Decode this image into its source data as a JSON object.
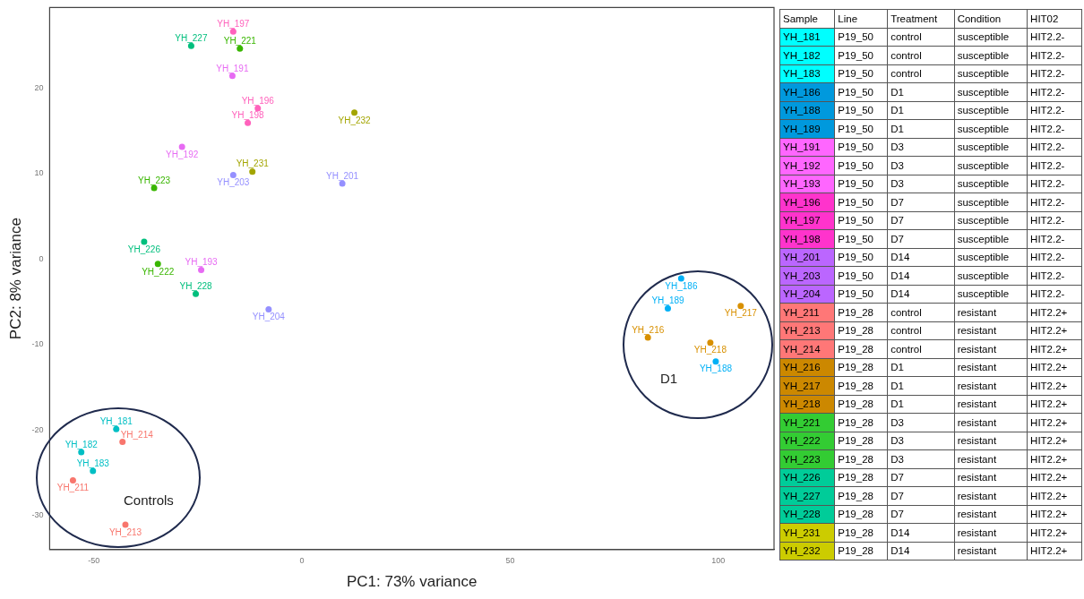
{
  "chart_data": [
    {
      "type": "scatter",
      "xlabel": "PC1: 73% variance",
      "ylabel": "PC2: 8% variance",
      "xlim": [
        -60.6,
        113.4
      ],
      "ylim": [
        -34,
        29.4
      ],
      "xticks": [
        -50,
        0,
        50,
        100
      ],
      "yticks": [
        -30,
        -20,
        -10,
        0,
        10,
        20
      ],
      "grid": false,
      "legend": false,
      "marker": "circle",
      "annotations": [
        "Controls",
        "D1"
      ],
      "series": [
        {
          "name": "YH_197",
          "color": "#ff62bc",
          "x": [
            -16.5
          ],
          "values": [
            26.6
          ]
        },
        {
          "name": "YH_227",
          "color": "#00bf7d",
          "x": [
            -26.6
          ],
          "values": [
            24.9
          ]
        },
        {
          "name": "YH_221",
          "color": "#39b600",
          "x": [
            -14.9
          ],
          "values": [
            24.6
          ]
        },
        {
          "name": "YH_191",
          "color": "#e76bf3",
          "x": [
            -16.7
          ],
          "values": [
            21.4
          ]
        },
        {
          "name": "YH_196",
          "color": "#ff62bc",
          "x": [
            -10.6
          ],
          "values": [
            17.6
          ]
        },
        {
          "name": "YH_198",
          "color": "#ff62bc",
          "x": [
            -13
          ],
          "values": [
            15.9
          ]
        },
        {
          "name": "YH_232",
          "color": "#a3a500",
          "x": [
            12.6
          ],
          "values": [
            17.1
          ]
        },
        {
          "name": "YH_192",
          "color": "#e76bf3",
          "x": [
            -28.8
          ],
          "values": [
            13.1
          ]
        },
        {
          "name": "YH_231",
          "color": "#a3a500",
          "x": [
            -11.9
          ],
          "values": [
            10.2
          ]
        },
        {
          "name": "YH_203",
          "color": "#9590ff",
          "x": [
            -16.5
          ],
          "values": [
            9.8
          ]
        },
        {
          "name": "YH_223",
          "color": "#39b600",
          "x": [
            -35.5
          ],
          "values": [
            8.3
          ]
        },
        {
          "name": "YH_201",
          "color": "#9590ff",
          "x": [
            9.7
          ],
          "values": [
            8.8
          ]
        },
        {
          "name": "YH_226",
          "color": "#00bf7d",
          "x": [
            -37.9
          ],
          "values": [
            2
          ]
        },
        {
          "name": "YH_222",
          "color": "#39b600",
          "x": [
            -34.6
          ],
          "values": [
            -0.6
          ]
        },
        {
          "name": "YH_193",
          "color": "#e76bf3",
          "x": [
            -24.2
          ],
          "values": [
            -1.3
          ]
        },
        {
          "name": "YH_228",
          "color": "#00bf7d",
          "x": [
            -25.5
          ],
          "values": [
            -4.1
          ]
        },
        {
          "name": "YH_204",
          "color": "#9590ff",
          "x": [
            -8
          ],
          "values": [
            -5.9
          ]
        },
        {
          "name": "YH_186",
          "color": "#00b0f6",
          "x": [
            91.1
          ],
          "values": [
            -2.3
          ]
        },
        {
          "name": "YH_189",
          "color": "#00b0f6",
          "x": [
            87.9
          ],
          "values": [
            -5.8
          ]
        },
        {
          "name": "YH_217",
          "color": "#d89000",
          "x": [
            105.4
          ],
          "values": [
            -5.5
          ]
        },
        {
          "name": "YH_216",
          "color": "#d89000",
          "x": [
            83.1
          ],
          "values": [
            -9.2
          ]
        },
        {
          "name": "YH_218",
          "color": "#d89000",
          "x": [
            98.1
          ],
          "values": [
            -9.8
          ]
        },
        {
          "name": "YH_188",
          "color": "#00b0f6",
          "x": [
            99.4
          ],
          "values": [
            -12
          ]
        },
        {
          "name": "YH_181",
          "color": "#00bfc4",
          "x": [
            -44.6
          ],
          "values": [
            -19.9
          ]
        },
        {
          "name": "YH_214",
          "color": "#f8766d",
          "x": [
            -43.1
          ],
          "values": [
            -21.4
          ]
        },
        {
          "name": "YH_182",
          "color": "#00bfc4",
          "x": [
            -53
          ],
          "values": [
            -22.6
          ]
        },
        {
          "name": "YH_183",
          "color": "#00bfc4",
          "x": [
            -50.2
          ],
          "values": [
            -24.8
          ]
        },
        {
          "name": "YH_211",
          "color": "#f8766d",
          "x": [
            -55
          ],
          "values": [
            -25.9
          ]
        },
        {
          "name": "YH_213",
          "color": "#f8766d",
          "x": [
            -42.4
          ],
          "values": [
            -31.1
          ]
        }
      ]
    },
    {
      "type": "other",
      "categories": [
        "Sample",
        "Line",
        "Treatment",
        "Condition",
        "HIT02"
      ],
      "colors": [
        "#00ffff",
        "#00ffff",
        "#00ffff",
        "#0099dd",
        "#0099dd",
        "#0099dd",
        "#ff66ff",
        "#ff66ff",
        "#ff66ff",
        "#ff33cc",
        "#ff33cc",
        "#ff33cc",
        "#bb66ff",
        "#bb66ff",
        "#bb66ff",
        "#ff7777",
        "#ff7777",
        "#ff7777",
        "#cc8800",
        "#cc8800",
        "#cc8800",
        "#33cc33",
        "#33cc33",
        "#33cc33",
        "#00cc99",
        "#00cc99",
        "#00cc99",
        "#cccc00",
        "#cccc00"
      ],
      "cells": [
        [
          "YH_181",
          "P19_50",
          "control",
          "susceptible",
          "HIT2.2-"
        ],
        [
          "YH_182",
          "P19_50",
          "control",
          "susceptible",
          "HIT2.2-"
        ],
        [
          "YH_183",
          "P19_50",
          "control",
          "susceptible",
          "HIT2.2-"
        ],
        [
          "YH_186",
          "P19_50",
          "D1",
          "susceptible",
          "HIT2.2-"
        ],
        [
          "YH_188",
          "P19_50",
          "D1",
          "susceptible",
          "HIT2.2-"
        ],
        [
          "YH_189",
          "P19_50",
          "D1",
          "susceptible",
          "HIT2.2-"
        ],
        [
          "YH_191",
          "P19_50",
          "D3",
          "susceptible",
          "HIT2.2-"
        ],
        [
          "YH_192",
          "P19_50",
          "D3",
          "susceptible",
          "HIT2.2-"
        ],
        [
          "YH_193",
          "P19_50",
          "D3",
          "susceptible",
          "HIT2.2-"
        ],
        [
          "YH_196",
          "P19_50",
          "D7",
          "susceptible",
          "HIT2.2-"
        ],
        [
          "YH_197",
          "P19_50",
          "D7",
          "susceptible",
          "HIT2.2-"
        ],
        [
          "YH_198",
          "P19_50",
          "D7",
          "susceptible",
          "HIT2.2-"
        ],
        [
          "YH_201",
          "P19_50",
          "D14",
          "susceptible",
          "HIT2.2-"
        ],
        [
          "YH_203",
          "P19_50",
          "D14",
          "susceptible",
          "HIT2.2-"
        ],
        [
          "YH_204",
          "P19_50",
          "D14",
          "susceptible",
          "HIT2.2-"
        ],
        [
          "YH_211",
          "P19_28",
          "control",
          "resistant",
          "HIT2.2+"
        ],
        [
          "YH_213",
          "P19_28",
          "control",
          "resistant",
          "HIT2.2+"
        ],
        [
          "YH_214",
          "P19_28",
          "control",
          "resistant",
          "HIT2.2+"
        ],
        [
          "YH_216",
          "P19_28",
          "D1",
          "resistant",
          "HIT2.2+"
        ],
        [
          "YH_217",
          "P19_28",
          "D1",
          "resistant",
          "HIT2.2+"
        ],
        [
          "YH_218",
          "P19_28",
          "D1",
          "resistant",
          "HIT2.2+"
        ],
        [
          "YH_221",
          "P19_28",
          "D3",
          "resistant",
          "HIT2.2+"
        ],
        [
          "YH_222",
          "P19_28",
          "D3",
          "resistant",
          "HIT2.2+"
        ],
        [
          "YH_223",
          "P19_28",
          "D3",
          "resistant",
          "HIT2.2+"
        ],
        [
          "YH_226",
          "P19_28",
          "D7",
          "resistant",
          "HIT2.2+"
        ],
        [
          "YH_227",
          "P19_28",
          "D7",
          "resistant",
          "HIT2.2+"
        ],
        [
          "YH_228",
          "P19_28",
          "D7",
          "resistant",
          "HIT2.2+"
        ],
        [
          "YH_231",
          "P19_28",
          "D14",
          "resistant",
          "HIT2.2+"
        ],
        [
          "YH_232",
          "P19_28",
          "D14",
          "resistant",
          "HIT2.2+"
        ]
      ]
    }
  ]
}
